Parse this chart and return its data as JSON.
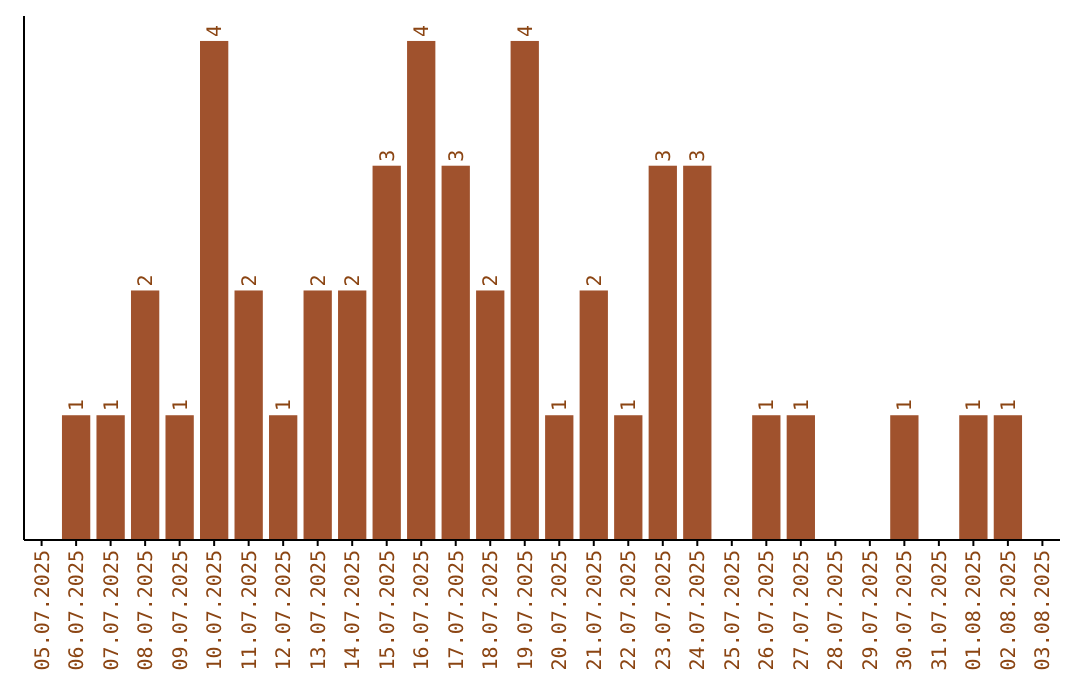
{
  "chart_data": {
    "type": "bar",
    "categories": [
      "05.07.2025",
      "06.07.2025",
      "07.07.2025",
      "08.07.2025",
      "09.07.2025",
      "10.07.2025",
      "11.07.2025",
      "12.07.2025",
      "13.07.2025",
      "14.07.2025",
      "15.07.2025",
      "16.07.2025",
      "17.07.2025",
      "18.07.2025",
      "19.07.2025",
      "20.07.2025",
      "21.07.2025",
      "22.07.2025",
      "23.07.2025",
      "24.07.2025",
      "25.07.2025",
      "26.07.2025",
      "27.07.2025",
      "28.07.2025",
      "29.07.2025",
      "30.07.2025",
      "31.07.2025",
      "01.08.2025",
      "02.08.2025",
      "03.08.2025"
    ],
    "values": [
      null,
      1,
      1,
      2,
      1,
      4,
      2,
      1,
      2,
      2,
      3,
      4,
      3,
      2,
      4,
      1,
      2,
      1,
      3,
      3,
      null,
      1,
      1,
      null,
      null,
      1,
      null,
      1,
      1,
      null
    ],
    "color": "#a0522d",
    "data_labels": true
  }
}
